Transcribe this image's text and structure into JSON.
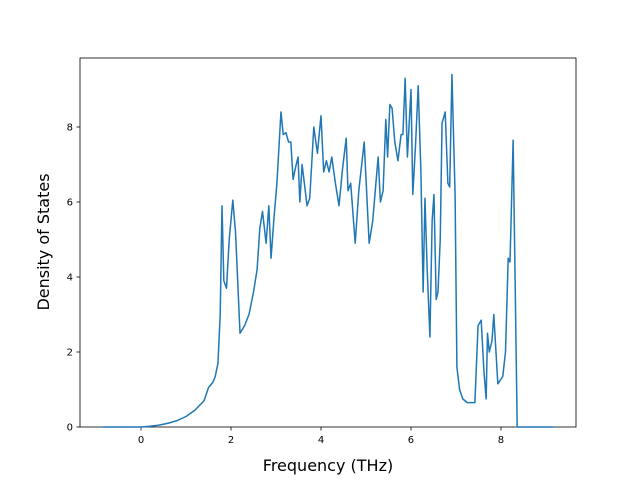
{
  "chart_data": {
    "type": "line",
    "xlabel": "Frequency (THz)",
    "ylabel": "Density of States",
    "color": "#1f77b4",
    "x": [
      -0.85,
      0,
      0.2,
      0.4,
      0.6,
      0.8,
      1.0,
      1.2,
      1.4,
      1.5,
      1.6,
      1.65,
      1.71,
      1.76,
      1.8,
      1.84,
      1.9,
      1.96,
      2.04,
      2.1,
      2.2,
      2.3,
      2.4,
      2.5,
      2.58,
      2.64,
      2.7,
      2.78,
      2.84,
      2.89,
      2.95,
      3.02,
      3.11,
      3.16,
      3.22,
      3.28,
      3.33,
      3.38,
      3.43,
      3.49,
      3.53,
      3.58,
      3.64,
      3.69,
      3.75,
      3.84,
      3.92,
      4.0,
      4.06,
      4.12,
      4.18,
      4.24,
      4.32,
      4.4,
      4.48,
      4.56,
      4.6,
      4.66,
      4.76,
      4.84,
      4.96,
      5.07,
      5.15,
      5.22,
      5.27,
      5.32,
      5.38,
      5.44,
      5.48,
      5.53,
      5.58,
      5.64,
      5.71,
      5.78,
      5.82,
      5.87,
      5.92,
      6.0,
      6.04,
      6.1,
      6.16,
      6.22,
      6.27,
      6.31,
      6.36,
      6.42,
      6.47,
      6.51,
      6.56,
      6.6,
      6.65,
      6.69,
      6.76,
      6.82,
      6.86,
      6.91,
      6.98,
      7.02,
      7.08,
      7.15,
      7.25,
      7.42,
      7.49,
      7.56,
      7.62,
      7.67,
      7.7,
      7.74,
      7.8,
      7.84,
      7.93,
      8.04,
      8.1,
      8.16,
      8.2,
      8.27,
      8.36,
      9.16
    ],
    "values": [
      0,
      0,
      0.02,
      0.05,
      0.1,
      0.17,
      0.28,
      0.45,
      0.7,
      1.05,
      1.2,
      1.35,
      1.7,
      3.0,
      5.9,
      3.9,
      3.7,
      5.0,
      6.05,
      5.2,
      2.5,
      2.7,
      3.0,
      3.6,
      4.2,
      5.3,
      5.75,
      4.9,
      5.9,
      4.5,
      5.5,
      6.5,
      8.4,
      7.8,
      7.85,
      7.6,
      7.6,
      6.6,
      6.9,
      7.2,
      6.0,
      7.0,
      6.4,
      5.9,
      6.1,
      8.0,
      7.3,
      8.3,
      6.8,
      7.1,
      6.8,
      7.2,
      6.5,
      5.9,
      6.9,
      7.7,
      6.3,
      6.5,
      4.9,
      6.3,
      7.6,
      4.9,
      5.5,
      6.5,
      7.2,
      6.0,
      6.3,
      8.2,
      7.2,
      8.6,
      8.5,
      7.6,
      7.1,
      7.8,
      7.8,
      9.3,
      7.2,
      9.0,
      6.2,
      7.5,
      9.1,
      6.8,
      3.6,
      6.1,
      4.2,
      2.4,
      5.5,
      6.2,
      3.4,
      3.6,
      5.0,
      8.1,
      8.4,
      6.5,
      6.4,
      9.4,
      6.2,
      1.6,
      1.0,
      0.75,
      0.65,
      0.65,
      2.7,
      2.85,
      1.5,
      0.75,
      2.5,
      2.0,
      2.3,
      3.0,
      1.15,
      1.35,
      2.0,
      4.5,
      4.4,
      7.65,
      0,
      0
    ],
    "xlim": [
      -1.356,
      9.667
    ],
    "xticks": [
      0,
      2,
      4,
      6,
      8
    ],
    "ylim": [
      0,
      9.84
    ],
    "yticks": [
      0,
      2,
      4,
      6,
      8
    ]
  }
}
